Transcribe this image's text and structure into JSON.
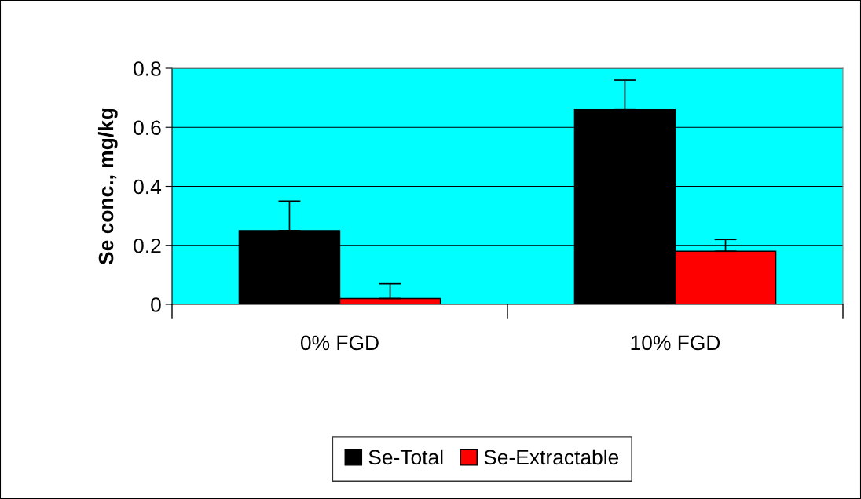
{
  "chart_data": {
    "type": "bar",
    "ylabel": "Se conc., mg/kg",
    "categories": [
      "0% FGD",
      "10% FGD"
    ],
    "series": [
      {
        "name": "Se-Total",
        "color": "#000000",
        "values": [
          0.25,
          0.66
        ],
        "errors": [
          [
            0.25,
            0.35
          ],
          [
            0.66,
            0.76
          ]
        ]
      },
      {
        "name": "Se-Extractable",
        "color": "#ff0000",
        "values": [
          0.02,
          0.18
        ],
        "errors": [
          [
            0.02,
            0.07
          ],
          [
            0.18,
            0.22
          ]
        ]
      }
    ],
    "ylim": [
      0,
      0.8
    ],
    "yticks": [
      0,
      0.2,
      0.4,
      0.6,
      0.8
    ],
    "grid": "y",
    "legend": "bottom"
  }
}
